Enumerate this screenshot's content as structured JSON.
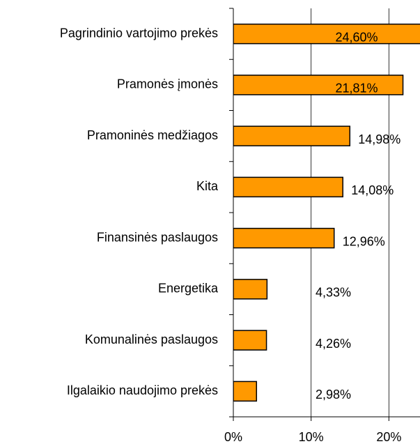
{
  "chart_data": {
    "type": "bar",
    "orientation": "horizontal",
    "categories": [
      "Pagrindinio vartojimo prekės",
      "Pramonės įmonės",
      "Pramoninės medžiagos",
      "Kita",
      "Finansinės paslaugos",
      "Energetika",
      "Komunalinės paslaugos",
      "Ilgalaikio naudojimo prekės"
    ],
    "values": [
      24.6,
      21.81,
      14.98,
      14.08,
      12.96,
      4.33,
      4.26,
      2.98
    ],
    "value_labels": [
      "24,60%",
      "21,81%",
      "14,98%",
      "14,08%",
      "12,96%",
      "4,33%",
      "4,26%",
      "2,98%"
    ],
    "color": "#ff9900",
    "xlim": [
      0,
      24
    ],
    "xticks": [
      {
        "value": 0,
        "label": "0%"
      },
      {
        "value": 10,
        "label": "10%"
      },
      {
        "value": 20,
        "label": "20%"
      }
    ],
    "grid": true
  }
}
